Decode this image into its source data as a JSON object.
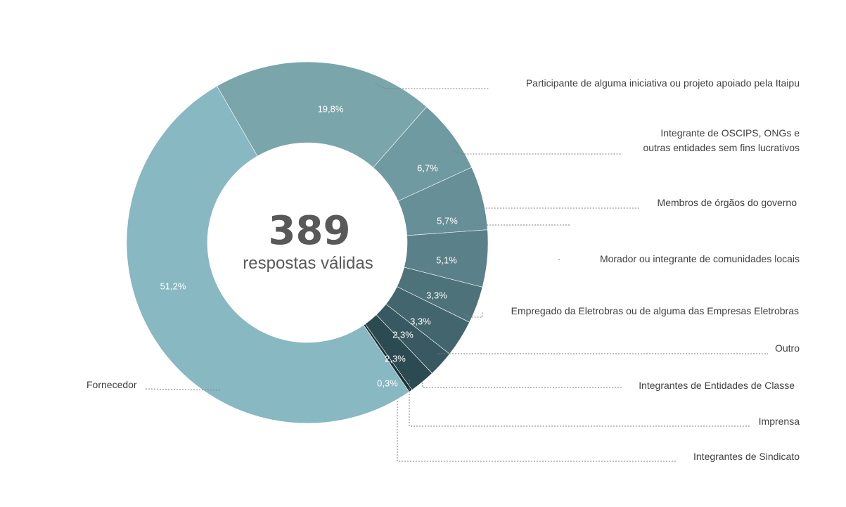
{
  "chart_data": {
    "type": "pie",
    "donut": true,
    "center": {
      "number": "389",
      "text": "respostas válidas"
    },
    "slices": [
      {
        "label": "Participante de alguma iniciativa ou projeto apoiado pela Itaipu",
        "value": 19.8,
        "display": "19,8%",
        "color": "#7aa5ab"
      },
      {
        "label": "Integrante de OSCIPS, ONGs e outras entidades sem fins lucrativos",
        "lines": [
          "Integrante de OSCIPS, ONGs e",
          "outras entidades sem fins lucrativos"
        ],
        "value": 6.7,
        "display": "6,7%",
        "color": "#6f9aa2"
      },
      {
        "label": "Membros de órgãos do governo",
        "value": 5.7,
        "display": "5,7%",
        "color": "#668f98"
      },
      {
        "label": "Morador ou integrante de comunidades locais",
        "value": 5.1,
        "display": "5,1%",
        "color": "#5a8089"
      },
      {
        "label": "Empregado da Eletrobras ou de alguma das Empresas Eletrobras",
        "value": 3.3,
        "display": "3,3%",
        "color": "#4d727a"
      },
      {
        "label": "Outro",
        "value": 3.3,
        "display": "3,3%",
        "color": "#43666e"
      },
      {
        "label": "Integrantes de Entidades de Classe",
        "value": 2.3,
        "display": "2,3%",
        "color": "#385961"
      },
      {
        "label": "Imprensa",
        "value": 2.3,
        "display": "2,3%",
        "color": "#2c4a51"
      },
      {
        "label": "Integrantes de Sindicato",
        "value": 0.3,
        "display": "0,3%",
        "color": "#1c3338"
      },
      {
        "label": "Fornecedor",
        "value": 51.2,
        "display": "51,2%",
        "color": "#88b8c2"
      }
    ]
  }
}
